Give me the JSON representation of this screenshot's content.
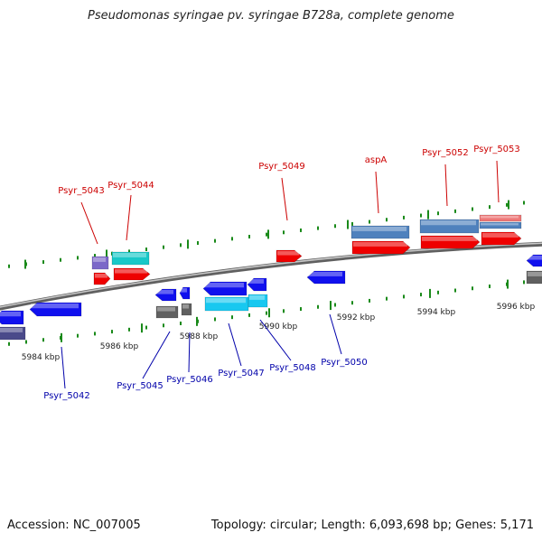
{
  "title": "Pseudomonas syringae pv. syringae B728a, complete genome",
  "footer": {
    "accession": "Accession: NC_007005",
    "summary": "Topology: circular; Length: 6,093,698 bp; Genes: 5,171"
  },
  "colors": {
    "forward_label": "#cc0000",
    "reverse_label": "#0000aa",
    "backbone": "#8a8a8a",
    "tick": "#1a8a1a"
  },
  "scale_labels": [
    "5984 kbp",
    "5986 kbp",
    "5988 kbp",
    "5990 kbp",
    "5992 kbp",
    "5994 kbp",
    "5996 kbp"
  ],
  "forward_genes": [
    "Psyr_5043",
    "Psyr_5044",
    "Psyr_5049",
    "aspA",
    "Psyr_5052",
    "Psyr_5053"
  ],
  "reverse_genes": [
    "Psyr_5042",
    "Psyr_5045",
    "Psyr_5046",
    "Psyr_5047",
    "Psyr_5048",
    "Psyr_5050"
  ]
}
